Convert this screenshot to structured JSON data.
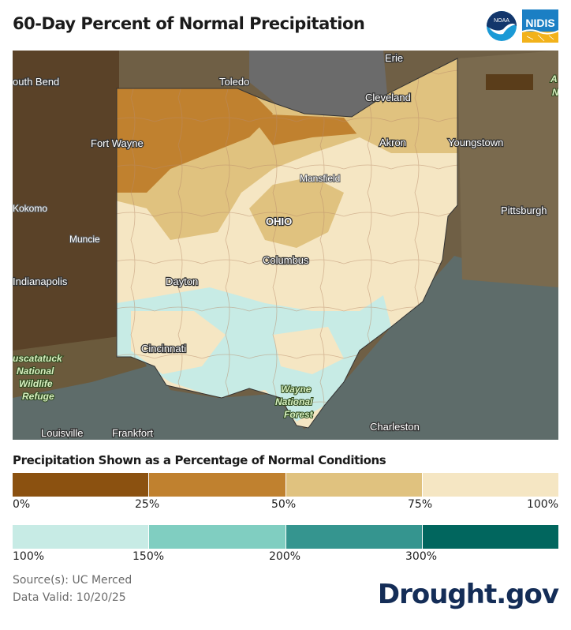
{
  "header": {
    "title": "60-Day Percent of Normal Precipitation",
    "logos": [
      "NOAA",
      "NIDIS"
    ]
  },
  "map": {
    "labels": {
      "toledo": "Toledo",
      "cleveland": "Cleveland",
      "akron": "Akron",
      "youngstown": "Youngstown",
      "fort_wayne": "Fort Wayne",
      "south_bend": "outh Bend",
      "kokomo": "Kokomo",
      "muncie": "Muncie",
      "indianapolis": "Indianapolis",
      "mansfield": "Mansfield",
      "ohio": "OHIO",
      "columbus": "Columbus",
      "dayton": "Dayton",
      "cincinnati": "Cincinnati",
      "pittsburgh": "Pittsburgh",
      "charleston": "Charleston",
      "louisville": "Louisville",
      "frankfort": "Frankfort",
      "muscatatuck": [
        "uscatatuck",
        "National",
        "Wildlife",
        "Refuge"
      ],
      "wayne": [
        "Wayne",
        "National",
        "Forest"
      ],
      "allegheny": [
        "A",
        "N"
      ],
      "lake": "Erie"
    }
  },
  "legend": {
    "title": "Precipitation Shown as a Percentage of Normal Conditions",
    "dry": {
      "colors": [
        "#8b5110",
        "#c0812f",
        "#e0c27f",
        "#f5e6c3"
      ],
      "ticks": [
        "0%",
        "25%",
        "50%",
        "75%",
        "100%"
      ]
    },
    "wet": {
      "colors": [
        "#c7ebe5",
        "#80cec1",
        "#35958f",
        "#01665e"
      ],
      "ticks": [
        "100%",
        "150%",
        "200%",
        "300%"
      ]
    }
  },
  "footer": {
    "source": "Source(s): UC Merced",
    "valid": "Data Valid: 10/20/25",
    "brand": "Drought.gov"
  }
}
